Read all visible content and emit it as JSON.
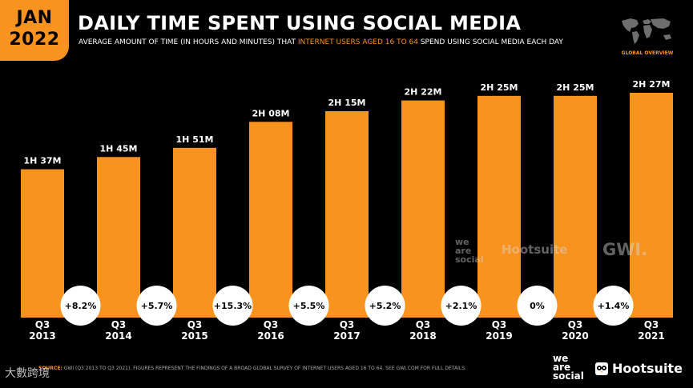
{
  "header": {
    "month": "JAN",
    "year": "2022",
    "title": "DAILY TIME SPENT USING SOCIAL MEDIA",
    "subtitle_pre": "AVERAGE AMOUNT OF TIME (IN HOURS AND MINUTES) THAT ",
    "subtitle_highlight": "INTERNET USERS AGED 16 TO 64",
    "subtitle_post": " SPEND USING SOCIAL MEDIA EACH DAY",
    "map_label": "GLOBAL OVERVIEW",
    "map_icon": "world-map-icon"
  },
  "colors": {
    "accent": "#F7931E",
    "background": "#000000",
    "bubble": "#FFFFFF"
  },
  "chart_data": {
    "type": "bar",
    "categories": [
      "Q3 2013",
      "Q3 2014",
      "Q3 2015",
      "Q3 2016",
      "Q3 2017",
      "Q3 2018",
      "Q3 2019",
      "Q3 2020",
      "Q3 2021"
    ],
    "tick_quarters": [
      "Q3",
      "Q3",
      "Q3",
      "Q3",
      "Q3",
      "Q3",
      "Q3",
      "Q3",
      "Q3"
    ],
    "tick_years": [
      "2013",
      "2014",
      "2015",
      "2016",
      "2017",
      "2018",
      "2019",
      "2020",
      "2021"
    ],
    "values_minutes": [
      97,
      105,
      111,
      128,
      135,
      142,
      145,
      145,
      147
    ],
    "value_labels": [
      "1H 37M",
      "1H 45M",
      "1H 51M",
      "2H 08M",
      "2H 15M",
      "2H 22M",
      "2H 25M",
      "2H 25M",
      "2H 27M"
    ],
    "changes": [
      "+8.2%",
      "+5.7%",
      "+15.3%",
      "+5.5%",
      "+5.2%",
      "+2.1%",
      "0%",
      "+1.4%"
    ],
    "ylim": [
      0,
      147
    ],
    "grid": false,
    "legend": "none"
  },
  "watermarks": {
    "we_are_social": [
      "we",
      "are",
      "social"
    ],
    "hootsuite": "Hootsuite",
    "gwi": "GWI."
  },
  "footer": {
    "source_key": "SOURCE:",
    "source_text": " GWI (Q3 2013 TO Q3 2021). FIGURES REPRESENT THE FINDINGS OF A BROAD GLOBAL SURVEY OF INTERNET USERS AGED 16 TO 64. SEE GWI.COM FOR FULL DETAILS.",
    "cn_watermark": "大數跨境",
    "logo_we_are_social": [
      "we",
      "are",
      "social"
    ],
    "logo_hootsuite": "Hootsuite"
  }
}
